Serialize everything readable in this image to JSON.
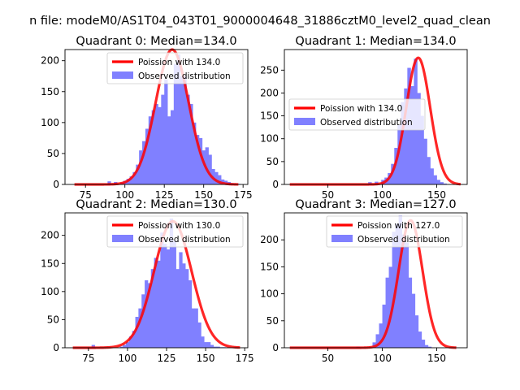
{
  "suptitle": "n file: modeM0/AS1T04_043T01_9000004648_31886cztM0_level2_quad_clean",
  "colors": {
    "fit": "#ff0000",
    "hist": "#8080ff",
    "axis": "#000000"
  },
  "chart_data": [
    {
      "type": "bar",
      "title": "Quadrant 0: Median=134.0",
      "xlim": [
        62,
        178
      ],
      "ylim": [
        0,
        218
      ],
      "xticks": [
        75,
        100,
        125,
        150,
        175
      ],
      "yticks": [
        0,
        50,
        100,
        150,
        200
      ],
      "legend_position": "top-right",
      "fit": {
        "name": "Poission with 134.0",
        "mu": 130,
        "amp": 218,
        "sigma": 10.5,
        "x": [
          68,
          172
        ]
      },
      "series": [
        {
          "name": "Observed distribution",
          "bin_start": 89,
          "bin_width": 2,
          "values": [
            5,
            0,
            4,
            0,
            3,
            6,
            9,
            13,
            20,
            32,
            55,
            70,
            90,
            110,
            120,
            130,
            125,
            145,
            170,
            110,
            120,
            195,
            210,
            175,
            175,
            145,
            130,
            100,
            80,
            75,
            55,
            60,
            48,
            25,
            20,
            15,
            8,
            6,
            4,
            2,
            1,
            1
          ]
        }
      ]
    },
    {
      "type": "bar",
      "title": "Quadrant 1: Median=134.0",
      "xlim": [
        10,
        178
      ],
      "ylim": [
        0,
        295
      ],
      "xticks": [
        50,
        100,
        150
      ],
      "yticks": [
        0,
        50,
        100,
        150,
        200,
        250
      ],
      "legend_position": "center-left",
      "fit": {
        "name": "Poission with 134.0",
        "mu": 133,
        "amp": 277,
        "sigma": 11,
        "x": [
          15,
          172
        ]
      },
      "series": [
        {
          "name": "Observed distribution",
          "bin_start": 87,
          "bin_width": 3,
          "values": [
            5,
            0,
            6,
            0,
            10,
            15,
            25,
            45,
            80,
            130,
            180,
            210,
            255,
            215,
            275,
            200,
            150,
            100,
            60,
            35,
            20,
            10,
            5,
            2
          ]
        }
      ]
    },
    {
      "type": "bar",
      "title": "Quadrant 2: Median=130.0",
      "xlim": [
        60,
        177
      ],
      "ylim": [
        0,
        240
      ],
      "xticks": [
        75,
        100,
        125,
        150,
        175
      ],
      "yticks": [
        0,
        50,
        100,
        150,
        200
      ],
      "legend_position": "top-right",
      "fit": {
        "name": "Poission with 130.0",
        "mu": 129,
        "amp": 225,
        "sigma": 12,
        "x": [
          65,
          172
        ]
      },
      "series": [
        {
          "name": "Observed distribution",
          "bin_start": 77,
          "bin_width": 2,
          "values": [
            5,
            0,
            0,
            0,
            0,
            0,
            0,
            0,
            0,
            2,
            5,
            10,
            20,
            30,
            55,
            70,
            95,
            120,
            115,
            140,
            160,
            155,
            205,
            185,
            175,
            230,
            190,
            140,
            170,
            150,
            140,
            120,
            70,
            70,
            45,
            20,
            10,
            10,
            5,
            2,
            2,
            1,
            1
          ]
        }
      ]
    },
    {
      "type": "bar",
      "title": "Quadrant 3: Median=127.0",
      "xlim": [
        10,
        178
      ],
      "ylim": [
        0,
        250
      ],
      "xticks": [
        50,
        100,
        150
      ],
      "yticks": [
        0,
        50,
        100,
        150,
        200
      ],
      "legend_position": "top-right",
      "fit": {
        "name": "Poission with 127.0",
        "mu": 126,
        "amp": 236,
        "sigma": 11,
        "x": [
          15,
          168
        ]
      },
      "series": [
        {
          "name": "Observed distribution",
          "bin_start": 76,
          "bin_width": 3,
          "values": [
            2,
            0,
            0,
            0,
            0,
            10,
            25,
            45,
            80,
            130,
            150,
            215,
            230,
            245,
            210,
            195,
            130,
            100,
            60,
            30,
            15,
            5,
            2
          ]
        }
      ]
    }
  ]
}
